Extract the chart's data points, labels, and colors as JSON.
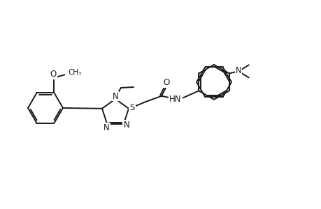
{
  "background_color": "#ffffff",
  "line_color": "#1a1a1a",
  "line_width": 1.4,
  "font_size": 8.5,
  "figure_width": 4.6,
  "figure_height": 3.0,
  "dpi": 100,
  "xlim": [
    0,
    46
  ],
  "ylim": [
    0,
    30
  ]
}
